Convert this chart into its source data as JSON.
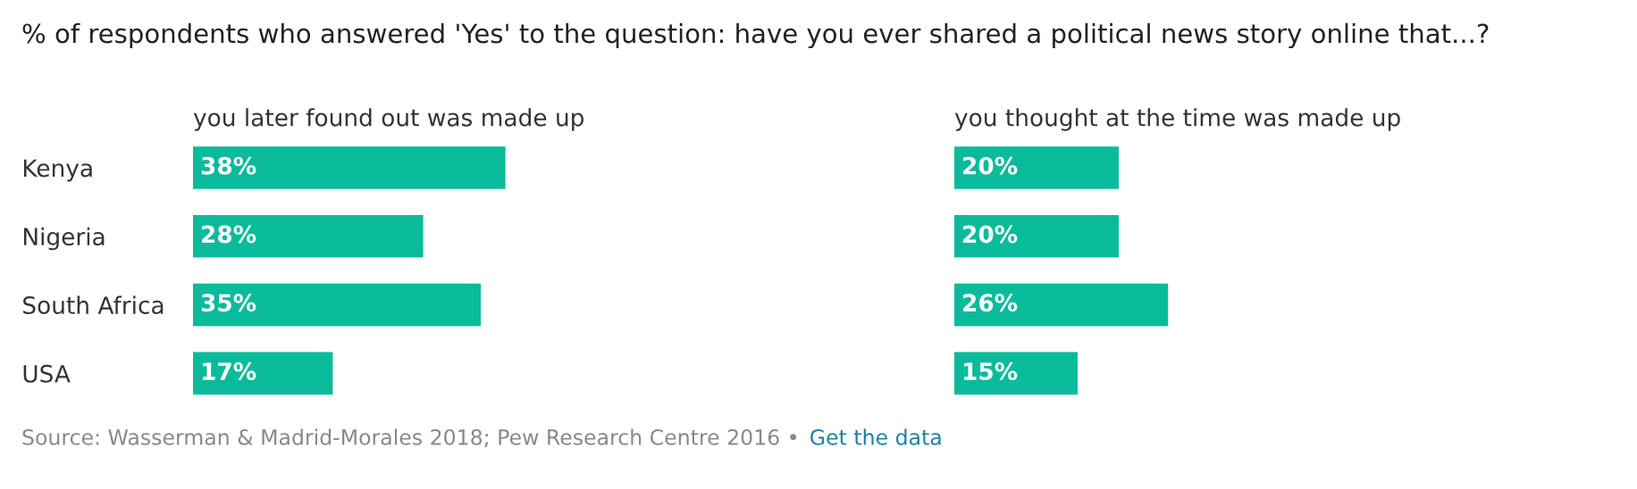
{
  "chart_data": [
    {
      "type": "bar",
      "orientation": "horizontal",
      "title": "% of respondents who answered 'Yes' to the question: have you ever shared a political news story online that...?",
      "subtitle": "you later found out was made up",
      "categories": [
        "Kenya",
        "Nigeria",
        "South Africa",
        "USA"
      ],
      "values": [
        38,
        28,
        35,
        17
      ],
      "value_labels": [
        "38%",
        "28%",
        "35%",
        "17%"
      ],
      "color": "#0abb9b",
      "tick_labels": "y",
      "annotations": [
        "Source: Wasserman & Madrid-Morales 2018; Pew Research Centre 2016 •",
        "Get the data"
      ]
    },
    {
      "type": "bar",
      "orientation": "horizontal",
      "subtitle": "you thought at the time was made up",
      "categories": [
        null,
        null,
        null,
        null
      ],
      "values": [
        20,
        20,
        26,
        15
      ],
      "value_labels": [
        "20%",
        "20%",
        "26%",
        "15%"
      ],
      "color": "#0abb9b",
      "tick_labels": false
    }
  ]
}
